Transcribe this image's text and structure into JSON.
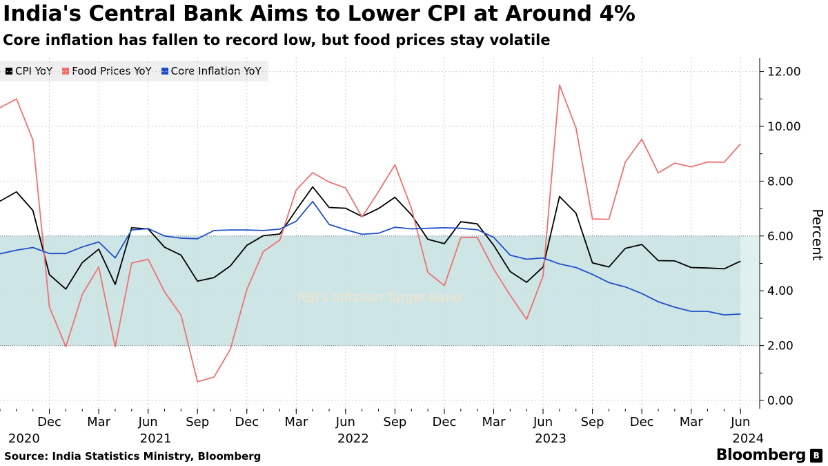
{
  "header": {
    "title": "India's Central Bank Aims to Lower CPI at Around 4%",
    "subtitle": "Core inflation has fallen to record low, but food prices stay volatile"
  },
  "legend": [
    {
      "label": "CPI YoY",
      "color": "#000000"
    },
    {
      "label": "Food Prices YoY",
      "color": "#f07070"
    },
    {
      "label": "Core Inflation YoY",
      "color": "#1f4fc8"
    }
  ],
  "footer": {
    "source": "Source: India Statistics Ministry, Bloomberg",
    "brand": "Bloomberg",
    "brand_mark": "B"
  },
  "chart_data": {
    "type": "line",
    "title": "India's Central Bank Aims to Lower CPI at Around 4%",
    "ylabel": "Percent",
    "ylim": [
      0,
      12.5
    ],
    "y_ticks": [
      0,
      2,
      4,
      6,
      8,
      10,
      12
    ],
    "y_tick_labels": [
      "0.00",
      "2.00",
      "4.00",
      "6.00",
      "8.00",
      "10.00",
      "12.00"
    ],
    "x_start": "2020-09",
    "x_month_labels": [
      {
        "index": 3,
        "label": "Dec"
      },
      {
        "index": 6,
        "label": "Mar"
      },
      {
        "index": 9,
        "label": "Jun"
      },
      {
        "index": 12,
        "label": "Sep"
      },
      {
        "index": 15,
        "label": "Dec"
      },
      {
        "index": 18,
        "label": "Mar"
      },
      {
        "index": 21,
        "label": "Jun"
      },
      {
        "index": 24,
        "label": "Sep"
      },
      {
        "index": 27,
        "label": "Dec"
      },
      {
        "index": 30,
        "label": "Mar"
      },
      {
        "index": 33,
        "label": "Jun"
      },
      {
        "index": 36,
        "label": "Sep"
      },
      {
        "index": 39,
        "label": "Dec"
      },
      {
        "index": 42,
        "label": "Mar"
      },
      {
        "index": 45,
        "label": "Jun"
      }
    ],
    "x_year_labels": [
      {
        "index": 0,
        "label": "2020"
      },
      {
        "index": 8,
        "label": "2021"
      },
      {
        "index": 20,
        "label": "2022"
      },
      {
        "index": 32,
        "label": "2023"
      },
      {
        "index": 44,
        "label": "2024"
      }
    ],
    "band": {
      "low": 2,
      "high": 6,
      "label": "RBI's Inflation Target Band"
    },
    "series": [
      {
        "name": "CPI YoY",
        "color": "#000000",
        "values": [
          7.27,
          7.61,
          6.93,
          4.59,
          4.06,
          5.03,
          5.52,
          4.23,
          6.3,
          6.26,
          5.59,
          5.3,
          4.35,
          4.48,
          4.91,
          5.66,
          6.01,
          6.07,
          6.95,
          7.79,
          7.04,
          7.01,
          6.71,
          7.0,
          7.41,
          6.77,
          5.88,
          5.72,
          6.52,
          6.44,
          5.66,
          4.7,
          4.31,
          4.87,
          7.44,
          6.83,
          5.02,
          4.87,
          5.55,
          5.69,
          5.1,
          5.09,
          4.85,
          4.83,
          4.8,
          5.08
        ]
      },
      {
        "name": "Food Prices YoY",
        "color": "#f07070",
        "values": [
          10.68,
          11.0,
          9.5,
          3.41,
          1.96,
          3.87,
          4.87,
          1.96,
          5.01,
          5.15,
          3.96,
          3.11,
          0.68,
          0.85,
          1.87,
          4.05,
          5.43,
          5.85,
          7.68,
          8.31,
          7.97,
          7.75,
          6.69,
          7.62,
          8.6,
          7.01,
          4.67,
          4.19,
          5.94,
          5.95,
          4.79,
          3.84,
          2.96,
          4.55,
          11.51,
          9.94,
          6.62,
          6.61,
          8.7,
          9.53,
          8.3,
          8.66,
          8.52,
          8.7,
          8.69,
          9.36
        ]
      },
      {
        "name": "Core Inflation YoY",
        "color": "#1f4fc8",
        "values": [
          5.35,
          5.48,
          5.58,
          5.36,
          5.36,
          5.6,
          5.78,
          5.2,
          6.22,
          6.27,
          6.0,
          5.92,
          5.9,
          6.2,
          6.22,
          6.22,
          6.2,
          6.25,
          6.54,
          7.26,
          6.42,
          6.23,
          6.06,
          6.1,
          6.32,
          6.26,
          6.28,
          6.3,
          6.28,
          6.23,
          5.95,
          5.3,
          5.15,
          5.2,
          4.98,
          4.85,
          4.6,
          4.3,
          4.14,
          3.9,
          3.6,
          3.4,
          3.25,
          3.25,
          3.12,
          3.15
        ]
      }
    ]
  }
}
